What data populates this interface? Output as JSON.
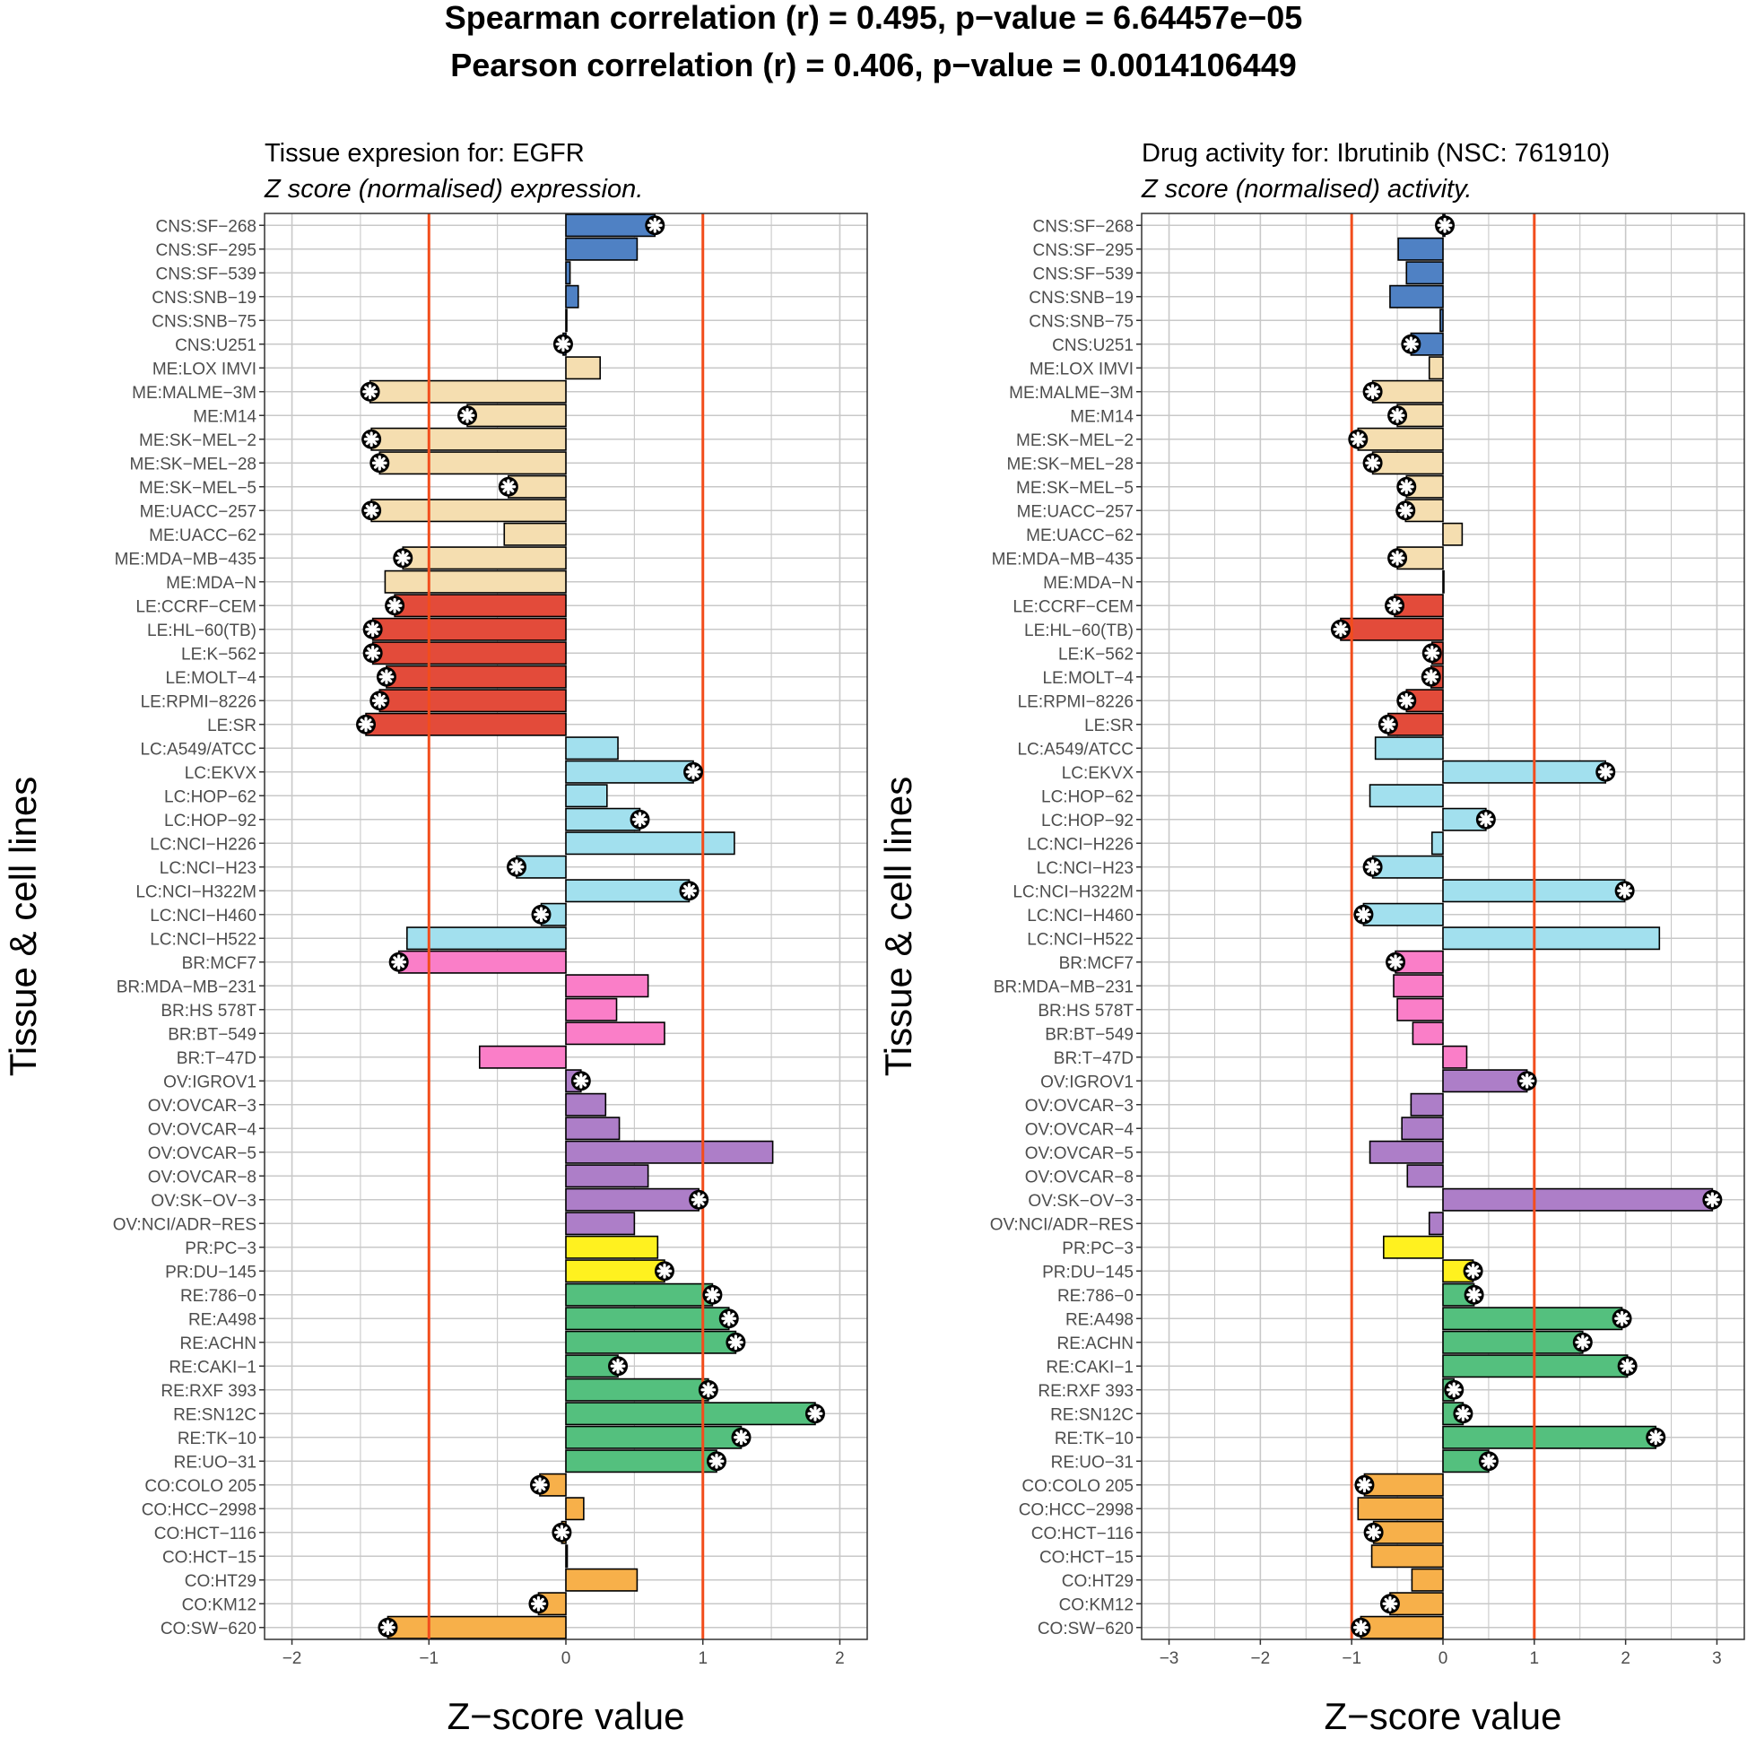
{
  "title_line1": "Spearman correlation (r) = 0.495,    p−value = 6.64457e−05",
  "title_line2": "Pearson correlation (r) = 0.406,    p−value = 0.0014106449",
  "colors": {
    "CNS": "#4f81c4",
    "ME": "#f5deb0",
    "LE": "#e34b3a",
    "LC": "#a2e0ee",
    "BR": "#fa7ec8",
    "OV": "#ad7ec8",
    "PR": "#fff11f",
    "RE": "#54c07e",
    "CO": "#f7b04a",
    "reference_line": "#f24d1c",
    "grid": "#c8c8c8",
    "frame": "#333333"
  },
  "chart_data": [
    {
      "type": "bar",
      "orientation": "horizontal",
      "title": "Tissue expresion for: EGFR",
      "subtitle": "Z score (normalised) expression.",
      "xlabel": "Z−score value",
      "ylabel": "Tissue & cell lines",
      "xlim": [
        -2.2,
        2.2
      ],
      "xticks": [
        -2,
        -1,
        0,
        1,
        2
      ],
      "xtick_labels": [
        "−2",
        "−1",
        "0",
        "1",
        "2"
      ],
      "reference_lines": [
        -1,
        1
      ],
      "grid": true,
      "categories": [
        "CNS:SF−268",
        "CNS:SF−295",
        "CNS:SF−539",
        "CNS:SNB−19",
        "CNS:SNB−75",
        "CNS:U251",
        "ME:LOX IMVI",
        "ME:MALME−3M",
        "ME:M14",
        "ME:SK−MEL−2",
        "ME:SK−MEL−28",
        "ME:SK−MEL−5",
        "ME:UACC−257",
        "ME:UACC−62",
        "ME:MDA−MB−435",
        "ME:MDA−N",
        "LE:CCRF−CEM",
        "LE:HL−60(TB)",
        "LE:K−562",
        "LE:MOLT−4",
        "LE:RPMI−8226",
        "LE:SR",
        "LC:A549/ATCC",
        "LC:EKVX",
        "LC:HOP−62",
        "LC:HOP−92",
        "LC:NCI−H226",
        "LC:NCI−H23",
        "LC:NCI−H322M",
        "LC:NCI−H460",
        "LC:NCI−H522",
        "BR:MCF7",
        "BR:MDA−MB−231",
        "BR:HS 578T",
        "BR:BT−549",
        "BR:T−47D",
        "OV:IGROV1",
        "OV:OVCAR−3",
        "OV:OVCAR−4",
        "OV:OVCAR−5",
        "OV:OVCAR−8",
        "OV:SK−OV−3",
        "OV:NCI/ADR−RES",
        "PR:PC−3",
        "PR:DU−145",
        "RE:786−0",
        "RE:A498",
        "RE:ACHN",
        "RE:CAKI−1",
        "RE:RXF 393",
        "RE:SN12C",
        "RE:TK−10",
        "RE:UO−31",
        "CO:COLO 205",
        "CO:HCC−2998",
        "CO:HCT−116",
        "CO:HCT−15",
        "CO:HT29",
        "CO:KM12",
        "CO:SW−620"
      ],
      "values": [
        0.65,
        0.52,
        0.03,
        0.09,
        0.0,
        -0.02,
        0.25,
        -1.43,
        -0.72,
        -1.42,
        -1.36,
        -0.42,
        -1.42,
        -0.45,
        -1.19,
        -1.32,
        -1.25,
        -1.41,
        -1.41,
        -1.31,
        -1.36,
        -1.46,
        0.38,
        0.93,
        0.3,
        0.54,
        1.23,
        -0.36,
        0.9,
        -0.18,
        -1.16,
        -1.22,
        0.6,
        0.37,
        0.72,
        -0.63,
        0.11,
        0.29,
        0.39,
        1.51,
        0.6,
        0.97,
        0.5,
        0.67,
        0.72,
        1.07,
        1.19,
        1.24,
        0.38,
        1.04,
        1.82,
        1.28,
        1.1,
        -0.19,
        0.13,
        -0.03,
        0.01,
        0.52,
        -0.2,
        -1.3
      ],
      "starred": [
        true,
        false,
        false,
        false,
        false,
        true,
        false,
        true,
        true,
        true,
        true,
        true,
        true,
        false,
        true,
        false,
        true,
        true,
        true,
        true,
        true,
        true,
        false,
        true,
        false,
        true,
        false,
        true,
        true,
        true,
        false,
        true,
        false,
        false,
        false,
        false,
        true,
        false,
        false,
        false,
        false,
        true,
        false,
        false,
        true,
        true,
        true,
        true,
        true,
        true,
        true,
        true,
        true,
        true,
        false,
        true,
        false,
        false,
        true,
        true
      ]
    },
    {
      "type": "bar",
      "orientation": "horizontal",
      "title": "Drug activity for: Ibrutinib (NSC: 761910)",
      "subtitle": "Z score (normalised) activity.",
      "xlabel": "Z−score value",
      "ylabel": "Tissue & cell lines",
      "xlim": [
        -3.3,
        3.3
      ],
      "xticks": [
        -3,
        -2,
        -1,
        0,
        1,
        2,
        3
      ],
      "xtick_labels": [
        "−3",
        "−2",
        "−1",
        "0",
        "1",
        "2",
        "3"
      ],
      "reference_lines": [
        -1,
        1
      ],
      "grid": true,
      "categories": [
        "CNS:SF−268",
        "CNS:SF−295",
        "CNS:SF−539",
        "CNS:SNB−19",
        "CNS:SNB−75",
        "CNS:U251",
        "ME:LOX IMVI",
        "ME:MALME−3M",
        "ME:M14",
        "ME:SK−MEL−2",
        "ME:SK−MEL−28",
        "ME:SK−MEL−5",
        "ME:UACC−257",
        "ME:UACC−62",
        "ME:MDA−MB−435",
        "ME:MDA−N",
        "LE:CCRF−CEM",
        "LE:HL−60(TB)",
        "LE:K−562",
        "LE:MOLT−4",
        "LE:RPMI−8226",
        "LE:SR",
        "LC:A549/ATCC",
        "LC:EKVX",
        "LC:HOP−62",
        "LC:HOP−92",
        "LC:NCI−H226",
        "LC:NCI−H23",
        "LC:NCI−H322M",
        "LC:NCI−H460",
        "LC:NCI−H522",
        "BR:MCF7",
        "BR:MDA−MB−231",
        "BR:HS 578T",
        "BR:BT−549",
        "BR:T−47D",
        "OV:IGROV1",
        "OV:OVCAR−3",
        "OV:OVCAR−4",
        "OV:OVCAR−5",
        "OV:OVCAR−8",
        "OV:SK−OV−3",
        "OV:NCI/ADR−RES",
        "PR:PC−3",
        "PR:DU−145",
        "RE:786−0",
        "RE:A498",
        "RE:ACHN",
        "RE:CAKI−1",
        "RE:RXF 393",
        "RE:SN12C",
        "RE:TK−10",
        "RE:UO−31",
        "CO:COLO 205",
        "CO:HCC−2998",
        "CO:HCT−116",
        "CO:HCT−15",
        "CO:HT29",
        "CO:KM12",
        "CO:SW−620"
      ],
      "values": [
        0.02,
        -0.49,
        -0.4,
        -0.58,
        -0.03,
        -0.35,
        -0.15,
        -0.77,
        -0.5,
        -0.93,
        -0.77,
        -0.4,
        -0.41,
        0.21,
        -0.5,
        0.0,
        -0.53,
        -1.12,
        -0.12,
        -0.13,
        -0.4,
        -0.6,
        -0.74,
        1.78,
        -0.8,
        0.47,
        -0.12,
        -0.77,
        1.99,
        -0.87,
        2.37,
        -0.52,
        -0.54,
        -0.5,
        -0.33,
        0.26,
        0.92,
        -0.35,
        -0.45,
        -0.8,
        -0.39,
        2.95,
        -0.15,
        -0.65,
        0.33,
        0.34,
        1.96,
        1.53,
        2.02,
        0.12,
        0.22,
        2.33,
        0.5,
        -0.86,
        -0.93,
        -0.76,
        -0.78,
        -0.34,
        -0.58,
        -0.9
      ],
      "starred": [
        true,
        false,
        false,
        false,
        false,
        true,
        false,
        true,
        true,
        true,
        true,
        true,
        true,
        false,
        true,
        false,
        true,
        true,
        true,
        true,
        true,
        true,
        false,
        true,
        false,
        true,
        false,
        true,
        true,
        true,
        false,
        true,
        false,
        false,
        false,
        false,
        true,
        false,
        false,
        false,
        false,
        true,
        false,
        false,
        true,
        true,
        true,
        true,
        true,
        true,
        true,
        true,
        true,
        true,
        false,
        true,
        false,
        false,
        true,
        true
      ]
    }
  ]
}
